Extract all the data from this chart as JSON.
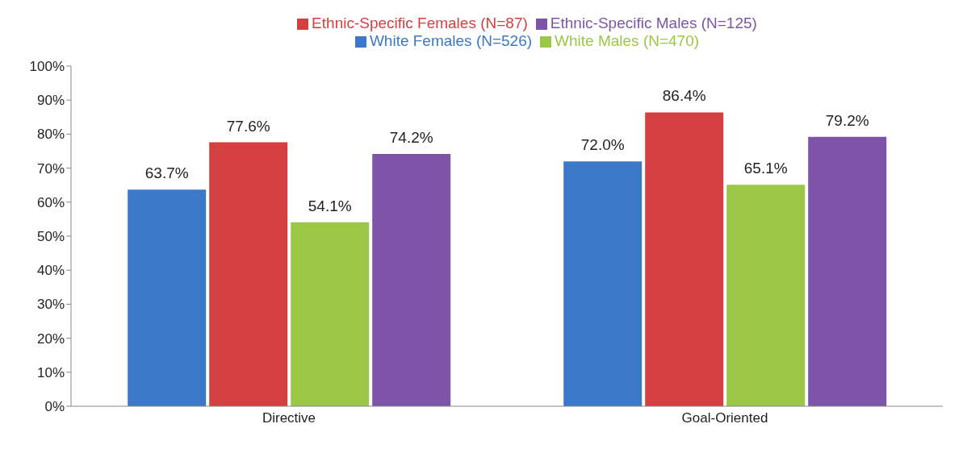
{
  "chart_data": {
    "type": "bar",
    "categories": [
      "Directive",
      "Goal-Oriented"
    ],
    "series": [
      {
        "name": "White Females (N=526)",
        "color": "#3b78c8",
        "values": [
          63.7,
          72.0
        ],
        "value_labels": [
          "63.7%",
          "72.0%"
        ]
      },
      {
        "name": "Ethnic-Specific Females (N=87)",
        "color": "#d43f3f",
        "values": [
          77.6,
          86.4
        ],
        "value_labels": [
          "77.6%",
          "86.4%"
        ]
      },
      {
        "name": "White Males (N=470)",
        "color": "#9cc746",
        "values": [
          54.1,
          65.1
        ],
        "value_labels": [
          "54.1%",
          "65.1%"
        ]
      },
      {
        "name": "Ethnic-Specific Males (N=125)",
        "color": "#7e54a8",
        "values": [
          74.2,
          79.2
        ],
        "value_labels": [
          "74.2%",
          "79.2%"
        ]
      }
    ],
    "ylim": [
      0,
      100
    ],
    "yticks": [
      {
        "value": 0,
        "label": "0%"
      },
      {
        "value": 10,
        "label": "10%"
      },
      {
        "value": 20,
        "label": "20%"
      },
      {
        "value": 30,
        "label": "30%"
      },
      {
        "value": 40,
        "label": "40%"
      },
      {
        "value": 50,
        "label": "50%"
      },
      {
        "value": 60,
        "label": "60%"
      },
      {
        "value": 70,
        "label": "70%"
      },
      {
        "value": 80,
        "label": "80%"
      },
      {
        "value": 90,
        "label": "90%"
      },
      {
        "value": 100,
        "label": "100%"
      }
    ],
    "grid": false,
    "legend": "top"
  }
}
